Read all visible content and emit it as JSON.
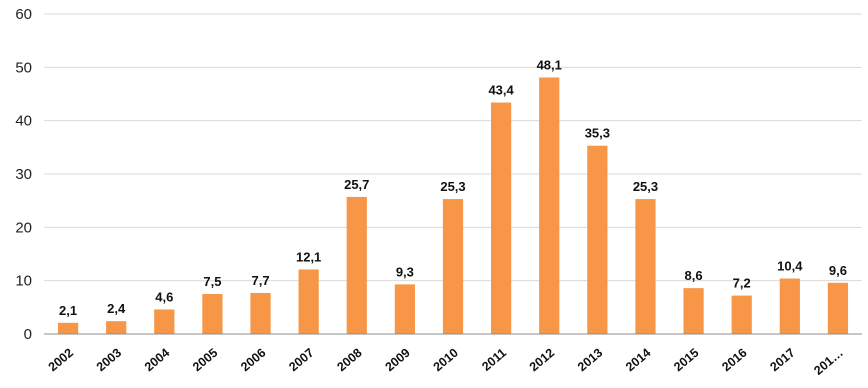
{
  "chart_data": {
    "type": "bar",
    "title": "",
    "xlabel": "",
    "ylabel": "",
    "categories": [
      "2002",
      "2003",
      "2004",
      "2005",
      "2006",
      "2007",
      "2008",
      "2009",
      "2010",
      "2011",
      "2012",
      "2013",
      "2014",
      "2015",
      "2016",
      "2017",
      "201…"
    ],
    "values": [
      2.1,
      2.4,
      4.6,
      7.5,
      7.7,
      12.1,
      25.7,
      9.3,
      25.3,
      43.4,
      48.1,
      35.3,
      25.3,
      8.6,
      7.2,
      10.4,
      9.6
    ],
    "data_labels": [
      "2,1",
      "2,4",
      "4,6",
      "7,5",
      "7,7",
      "12,1",
      "25,7",
      "9,3",
      "25,3",
      "43,4",
      "48,1",
      "35,3",
      "25,3",
      "8,6",
      "7,2",
      "10,4",
      "9,6"
    ],
    "ylim": [
      0,
      60
    ],
    "yticks": [
      0,
      10,
      20,
      30,
      40,
      50,
      60
    ],
    "grid": true,
    "legend": "none",
    "colors": {
      "bar": "#f79646"
    }
  }
}
